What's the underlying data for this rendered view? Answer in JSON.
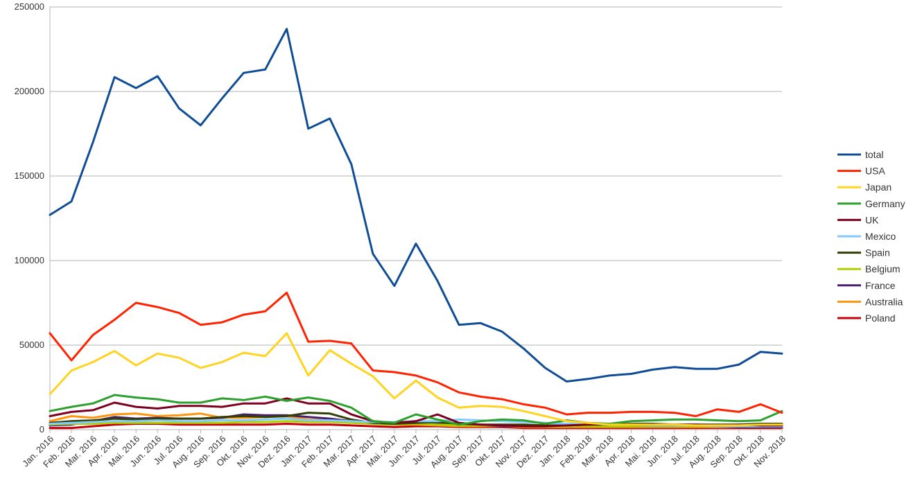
{
  "chart_data": {
    "type": "line",
    "title": "",
    "xlabel": "",
    "ylabel": "",
    "ylim": [
      0,
      250000
    ],
    "yticks": [
      "0",
      "50000",
      "100000",
      "150000",
      "200000",
      "250000"
    ],
    "grid": true,
    "legend_position": "right",
    "categories": [
      "Jan. 2016",
      "Feb. 2016",
      "Mar. 2016",
      "Apr. 2016",
      "Mai. 2016",
      "Jun. 2016",
      "Jul. 2016",
      "Aug. 2016",
      "Sep. 2016",
      "Okt. 2016",
      "Nov. 2016",
      "Dez. 2016",
      "Jan. 2017",
      "Feb. 2017",
      "Mar. 2017",
      "Apr. 2017",
      "Mai. 2017",
      "Jun. 2017",
      "Jul. 2017",
      "Aug. 2017",
      "Sep. 2017",
      "Okt. 2017",
      "Nov. 2017",
      "Dez. 2017",
      "Jan. 2018",
      "Feb. 2018",
      "Mar. 2018",
      "Apr. 2018",
      "Mai. 2018",
      "Jun. 2018",
      "Jul. 2018",
      "Aug. 2018",
      "Sep. 2018",
      "Okt. 2018",
      "Nov. 2018"
    ],
    "series": [
      {
        "name": "total",
        "color": "#0f4c96",
        "values": [
          127000,
          135000,
          170000,
          208500,
          202000,
          209000,
          190000,
          180000,
          196000,
          211000,
          213000,
          237000,
          178000,
          184000,
          157000,
          104000,
          85000,
          110000,
          88000,
          62000,
          63000,
          58000,
          48000,
          36500,
          28500,
          30000,
          32000,
          33000,
          35500,
          37000,
          36000,
          36000,
          38500,
          46000,
          45000
        ]
      },
      {
        "name": "USA",
        "color": "#ff2200",
        "values": [
          57000,
          41000,
          56000,
          65000,
          75000,
          72500,
          69000,
          62000,
          63500,
          68000,
          70000,
          81000,
          52000,
          52500,
          51000,
          35000,
          34000,
          32000,
          28000,
          22000,
          19500,
          18000,
          15000,
          13000,
          9000,
          10000,
          10000,
          10500,
          10500,
          10000,
          8000,
          12000,
          10500,
          15000,
          10000
        ]
      },
      {
        "name": "Japan",
        "color": "#ffd320",
        "values": [
          21000,
          35000,
          40000,
          46500,
          38000,
          45000,
          42500,
          36500,
          40000,
          45500,
          43500,
          57000,
          32000,
          47000,
          39000,
          31500,
          18500,
          29000,
          19000,
          13000,
          14000,
          13500,
          11000,
          8000,
          5000,
          4000,
          3000,
          3000,
          3000,
          3000,
          2500,
          2500,
          2500,
          3000,
          3000
        ]
      },
      {
        "name": "Germany",
        "color": "#2ca02c",
        "values": [
          11000,
          13500,
          15500,
          20500,
          19000,
          18000,
          16000,
          16000,
          18500,
          17500,
          19500,
          17000,
          19000,
          17000,
          13000,
          5000,
          4000,
          9000,
          6000,
          3000,
          5000,
          6000,
          5500,
          3500,
          5500,
          4000,
          3500,
          5000,
          5500,
          6000,
          6000,
          5500,
          5000,
          5500,
          11000
        ]
      },
      {
        "name": "UK",
        "color": "#7e0021",
        "values": [
          8000,
          10500,
          11500,
          16000,
          13500,
          12500,
          14000,
          14000,
          13500,
          15500,
          15500,
          18500,
          15500,
          15500,
          9000,
          5000,
          4000,
          5000,
          9000,
          4000,
          3000,
          2500,
          2000,
          2000,
          2500,
          3000,
          3500,
          3000,
          3000,
          3000,
          3000,
          2500,
          3000,
          2500,
          2500
        ]
      },
      {
        "name": "Mexico",
        "color": "#83caff",
        "values": [
          3500,
          4000,
          4500,
          5000,
          5000,
          5500,
          5000,
          5000,
          5500,
          5500,
          6000,
          6500,
          5500,
          5500,
          5000,
          4500,
          4500,
          5000,
          5000,
          6000,
          5500,
          5000,
          4500,
          4000,
          3500,
          3500,
          3000,
          3000,
          2500,
          2500,
          2500,
          2000,
          2000,
          2000,
          2000
        ]
      },
      {
        "name": "Spain",
        "color": "#314004",
        "values": [
          4000,
          5000,
          5500,
          6500,
          6000,
          6500,
          6500,
          6500,
          7500,
          8000,
          7500,
          8000,
          10000,
          9500,
          6000,
          4000,
          3500,
          4000,
          4500,
          3500,
          3000,
          3000,
          3000,
          2500,
          2500,
          3000,
          3000,
          3500,
          3500,
          3000,
          3000,
          3000,
          3000,
          3500,
          3500
        ]
      },
      {
        "name": "Belgium",
        "color": "#aecf00",
        "values": [
          3000,
          3500,
          3500,
          4000,
          4000,
          4000,
          4000,
          4000,
          4000,
          4500,
          4500,
          5000,
          4500,
          4500,
          4000,
          3500,
          3000,
          3500,
          3000,
          2500,
          2500,
          2500,
          2000,
          2000,
          2000,
          2000,
          2000,
          2000,
          2000,
          2000,
          2000,
          2000,
          2000,
          2000,
          2500
        ]
      },
      {
        "name": "France",
        "color": "#4b1f6f",
        "values": [
          2500,
          3000,
          5000,
          7500,
          6500,
          7000,
          6500,
          6500,
          7000,
          9000,
          8500,
          8500,
          7500,
          6500,
          5000,
          4000,
          4000,
          4000,
          3500,
          2500,
          2500,
          2000,
          2000,
          2000,
          2000,
          2000,
          2000,
          2000,
          2000,
          2000,
          2000,
          2000,
          1500,
          1500,
          1500
        ]
      },
      {
        "name": "Australia",
        "color": "#ff950e",
        "values": [
          5000,
          8000,
          7000,
          9000,
          9500,
          8000,
          8500,
          9500,
          7000,
          7000,
          7500,
          8000,
          6000,
          5500,
          4500,
          3500,
          3000,
          3000,
          2500,
          2000,
          2000,
          2000,
          1500,
          1500,
          1500,
          1500,
          1500,
          1500,
          1500,
          1500,
          1500,
          1500,
          1500,
          1500,
          1500
        ]
      },
      {
        "name": "Poland",
        "color": "#c5000b",
        "values": [
          1000,
          1000,
          2000,
          3000,
          3500,
          3500,
          3000,
          3000,
          3000,
          3000,
          3000,
          3500,
          3000,
          3000,
          2500,
          2000,
          1500,
          2000,
          2000,
          1500,
          1500,
          1500,
          1000,
          1000,
          1000,
          1000,
          1000,
          1000,
          1000,
          1000,
          1000,
          1000,
          1000,
          1000,
          1000
        ]
      }
    ]
  }
}
